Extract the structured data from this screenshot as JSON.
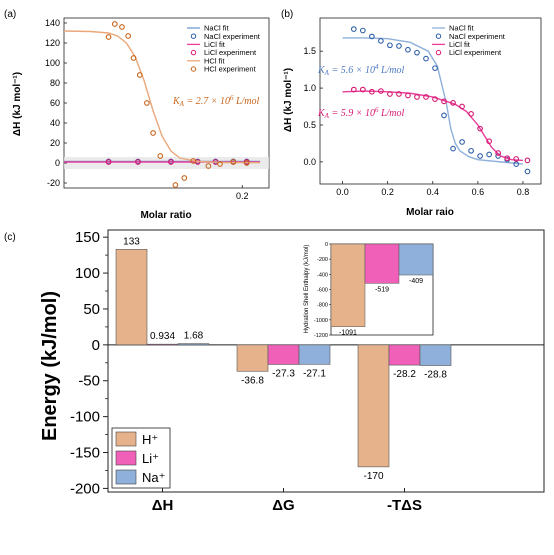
{
  "chart_data": [
    {
      "panel": "(a)",
      "type": "scatter",
      "xlabel": "Molar ratio",
      "ylabel": "ΔH (kJ mol⁻¹)",
      "xlim": [
        0,
        0.23
      ],
      "ylim": [
        -25,
        145
      ],
      "xticks": [
        0.2
      ],
      "yticks": [
        -20,
        0,
        20,
        40,
        60,
        80,
        100,
        120,
        140
      ],
      "annotation": "K_A = 2.7 × 10^6 L/mol",
      "legend_position": "top-right",
      "series": [
        {
          "name": "NaCl fit",
          "kind": "line",
          "color": "#6f9bd1",
          "x": [
            0,
            0.22
          ],
          "y": [
            1.5,
            1.5
          ]
        },
        {
          "name": "NaCl experiment",
          "kind": "points",
          "color": "#2f5fa8",
          "x": [
            0.05,
            0.083,
            0.12,
            0.15,
            0.17,
            0.19,
            0.205
          ],
          "y": [
            1.5,
            1.5,
            1.5,
            1.5,
            1.5,
            1.5,
            1.5
          ]
        },
        {
          "name": "LiCl fit",
          "kind": "line",
          "color": "#e83e9b",
          "x": [
            0,
            0.22
          ],
          "y": [
            1.0,
            1.0
          ]
        },
        {
          "name": "LiCl experiment",
          "kind": "points",
          "color": "#d6176f",
          "x": [
            0.05,
            0.083,
            0.12,
            0.15,
            0.17,
            0.19,
            0.205
          ],
          "y": [
            1.0,
            1.0,
            1.0,
            1.0,
            1.0,
            1.0,
            1.0
          ]
        },
        {
          "name": "HCl fit",
          "kind": "line",
          "color": "#eaa77a",
          "x": [
            0.0,
            0.03,
            0.05,
            0.06,
            0.07,
            0.08,
            0.09,
            0.1,
            0.11,
            0.12,
            0.13,
            0.15,
            0.18,
            0.22
          ],
          "y": [
            132,
            131.5,
            130,
            127,
            120,
            106,
            82,
            52,
            27,
            12,
            5,
            1.5,
            0.5,
            0.3
          ]
        },
        {
          "name": "HCl experiment",
          "kind": "points",
          "color": "#c8651b",
          "x": [
            0.05,
            0.057,
            0.065,
            0.072,
            0.078,
            0.085,
            0.093,
            0.1,
            0.108,
            0.125,
            0.135,
            0.145,
            0.162,
            0.175,
            0.19,
            0.205
          ],
          "y": [
            126,
            139,
            136,
            127,
            105,
            88,
            60,
            30,
            7,
            -22,
            -15,
            2,
            -3,
            -1,
            1,
            0
          ]
        }
      ]
    },
    {
      "panel": "(b)",
      "type": "scatter",
      "xlabel": "Molar raio",
      "ylabel": "ΔH (kJ mol⁻¹)",
      "xlim": [
        -0.1,
        0.88
      ],
      "ylim": [
        -0.3,
        1.95
      ],
      "xticks": [
        0.0,
        0.2,
        0.4,
        0.6,
        0.8
      ],
      "yticks": [
        0.0,
        0.5,
        1.0,
        1.5
      ],
      "annotations": [
        "K_A = 5.6 × 10^4 L/mol",
        "K_A = 5.9 × 10^6 L/mol"
      ],
      "legend_position": "top-right",
      "series": [
        {
          "name": "NaCl fit",
          "kind": "line",
          "color": "#8fb0da",
          "x": [
            0.0,
            0.1,
            0.2,
            0.3,
            0.38,
            0.42,
            0.46,
            0.48,
            0.5,
            0.52,
            0.56,
            0.6,
            0.7,
            0.8
          ],
          "y": [
            1.68,
            1.68,
            1.67,
            1.62,
            1.5,
            1.3,
            0.8,
            0.45,
            0.25,
            0.15,
            0.07,
            0.03,
            0.0,
            -0.03
          ]
        },
        {
          "name": "NaCl experiment",
          "kind": "points",
          "color": "#2f5fa8",
          "x": [
            0.05,
            0.09,
            0.13,
            0.17,
            0.21,
            0.25,
            0.29,
            0.33,
            0.37,
            0.41,
            0.45,
            0.49,
            0.53,
            0.57,
            0.61,
            0.65,
            0.69,
            0.73,
            0.77,
            0.82
          ],
          "y": [
            1.8,
            1.78,
            1.7,
            1.64,
            1.58,
            1.57,
            1.52,
            1.48,
            1.4,
            1.27,
            0.63,
            0.18,
            0.27,
            0.15,
            0.08,
            0.1,
            0.08,
            0.03,
            -0.03,
            -0.13
          ]
        },
        {
          "name": "LiCl fit",
          "kind": "line",
          "color": "#e83e9b",
          "x": [
            0.0,
            0.1,
            0.2,
            0.3,
            0.4,
            0.5,
            0.55,
            0.6,
            0.63,
            0.66,
            0.7,
            0.75,
            0.8
          ],
          "y": [
            0.95,
            0.96,
            0.95,
            0.93,
            0.88,
            0.78,
            0.68,
            0.5,
            0.35,
            0.2,
            0.08,
            0.03,
            0.02
          ]
        },
        {
          "name": "LiCl experiment",
          "kind": "points",
          "color": "#d6176f",
          "x": [
            0.05,
            0.09,
            0.13,
            0.17,
            0.21,
            0.25,
            0.29,
            0.33,
            0.37,
            0.41,
            0.45,
            0.49,
            0.53,
            0.57,
            0.61,
            0.65,
            0.69,
            0.73,
            0.77,
            0.82
          ],
          "y": [
            0.98,
            0.98,
            0.95,
            0.96,
            0.92,
            0.92,
            0.9,
            0.88,
            0.88,
            0.85,
            0.82,
            0.8,
            0.75,
            0.65,
            0.45,
            0.28,
            0.12,
            0.05,
            0.04,
            0.02
          ]
        }
      ]
    },
    {
      "panel": "(c)",
      "type": "bar",
      "ylabel": "Energy (kJ/mol)",
      "ylim": [
        -205,
        160
      ],
      "yticks": [
        150,
        100,
        50,
        0,
        -50,
        -100,
        -150,
        -200
      ],
      "categories": [
        "ΔH",
        "ΔG",
        "-TΔS"
      ],
      "legend_position": "bottom-left",
      "series": [
        {
          "name": "H⁺",
          "color": "#e6b28b",
          "values": [
            133,
            -36.8,
            -170
          ],
          "labels": [
            "133",
            "-36.8",
            "-170"
          ]
        },
        {
          "name": "Li⁺",
          "color": "#f060b8",
          "values": [
            0.934,
            -27.3,
            -28.2
          ],
          "labels": [
            "0.934",
            "-27.3",
            "-28.2"
          ]
        },
        {
          "name": "Na⁺",
          "color": "#8fb0da",
          "values": [
            1.68,
            -27.1,
            -28.8
          ],
          "labels": [
            "1.68",
            "-27.1",
            "-28.8"
          ]
        }
      ],
      "inset": {
        "type": "bar",
        "ylabel": "Hydration Shell Enthalpy (kJ/mol)",
        "ylim": [
          -1200,
          0
        ],
        "yticks": [
          0,
          -200,
          -400,
          -600,
          -800,
          -1000,
          -1200
        ],
        "values": [
          -1091,
          -519,
          -409
        ],
        "labels": [
          "-1091",
          "-519",
          "-409"
        ],
        "colors": [
          "#e6b28b",
          "#f060b8",
          "#8fb0da"
        ]
      }
    }
  ]
}
